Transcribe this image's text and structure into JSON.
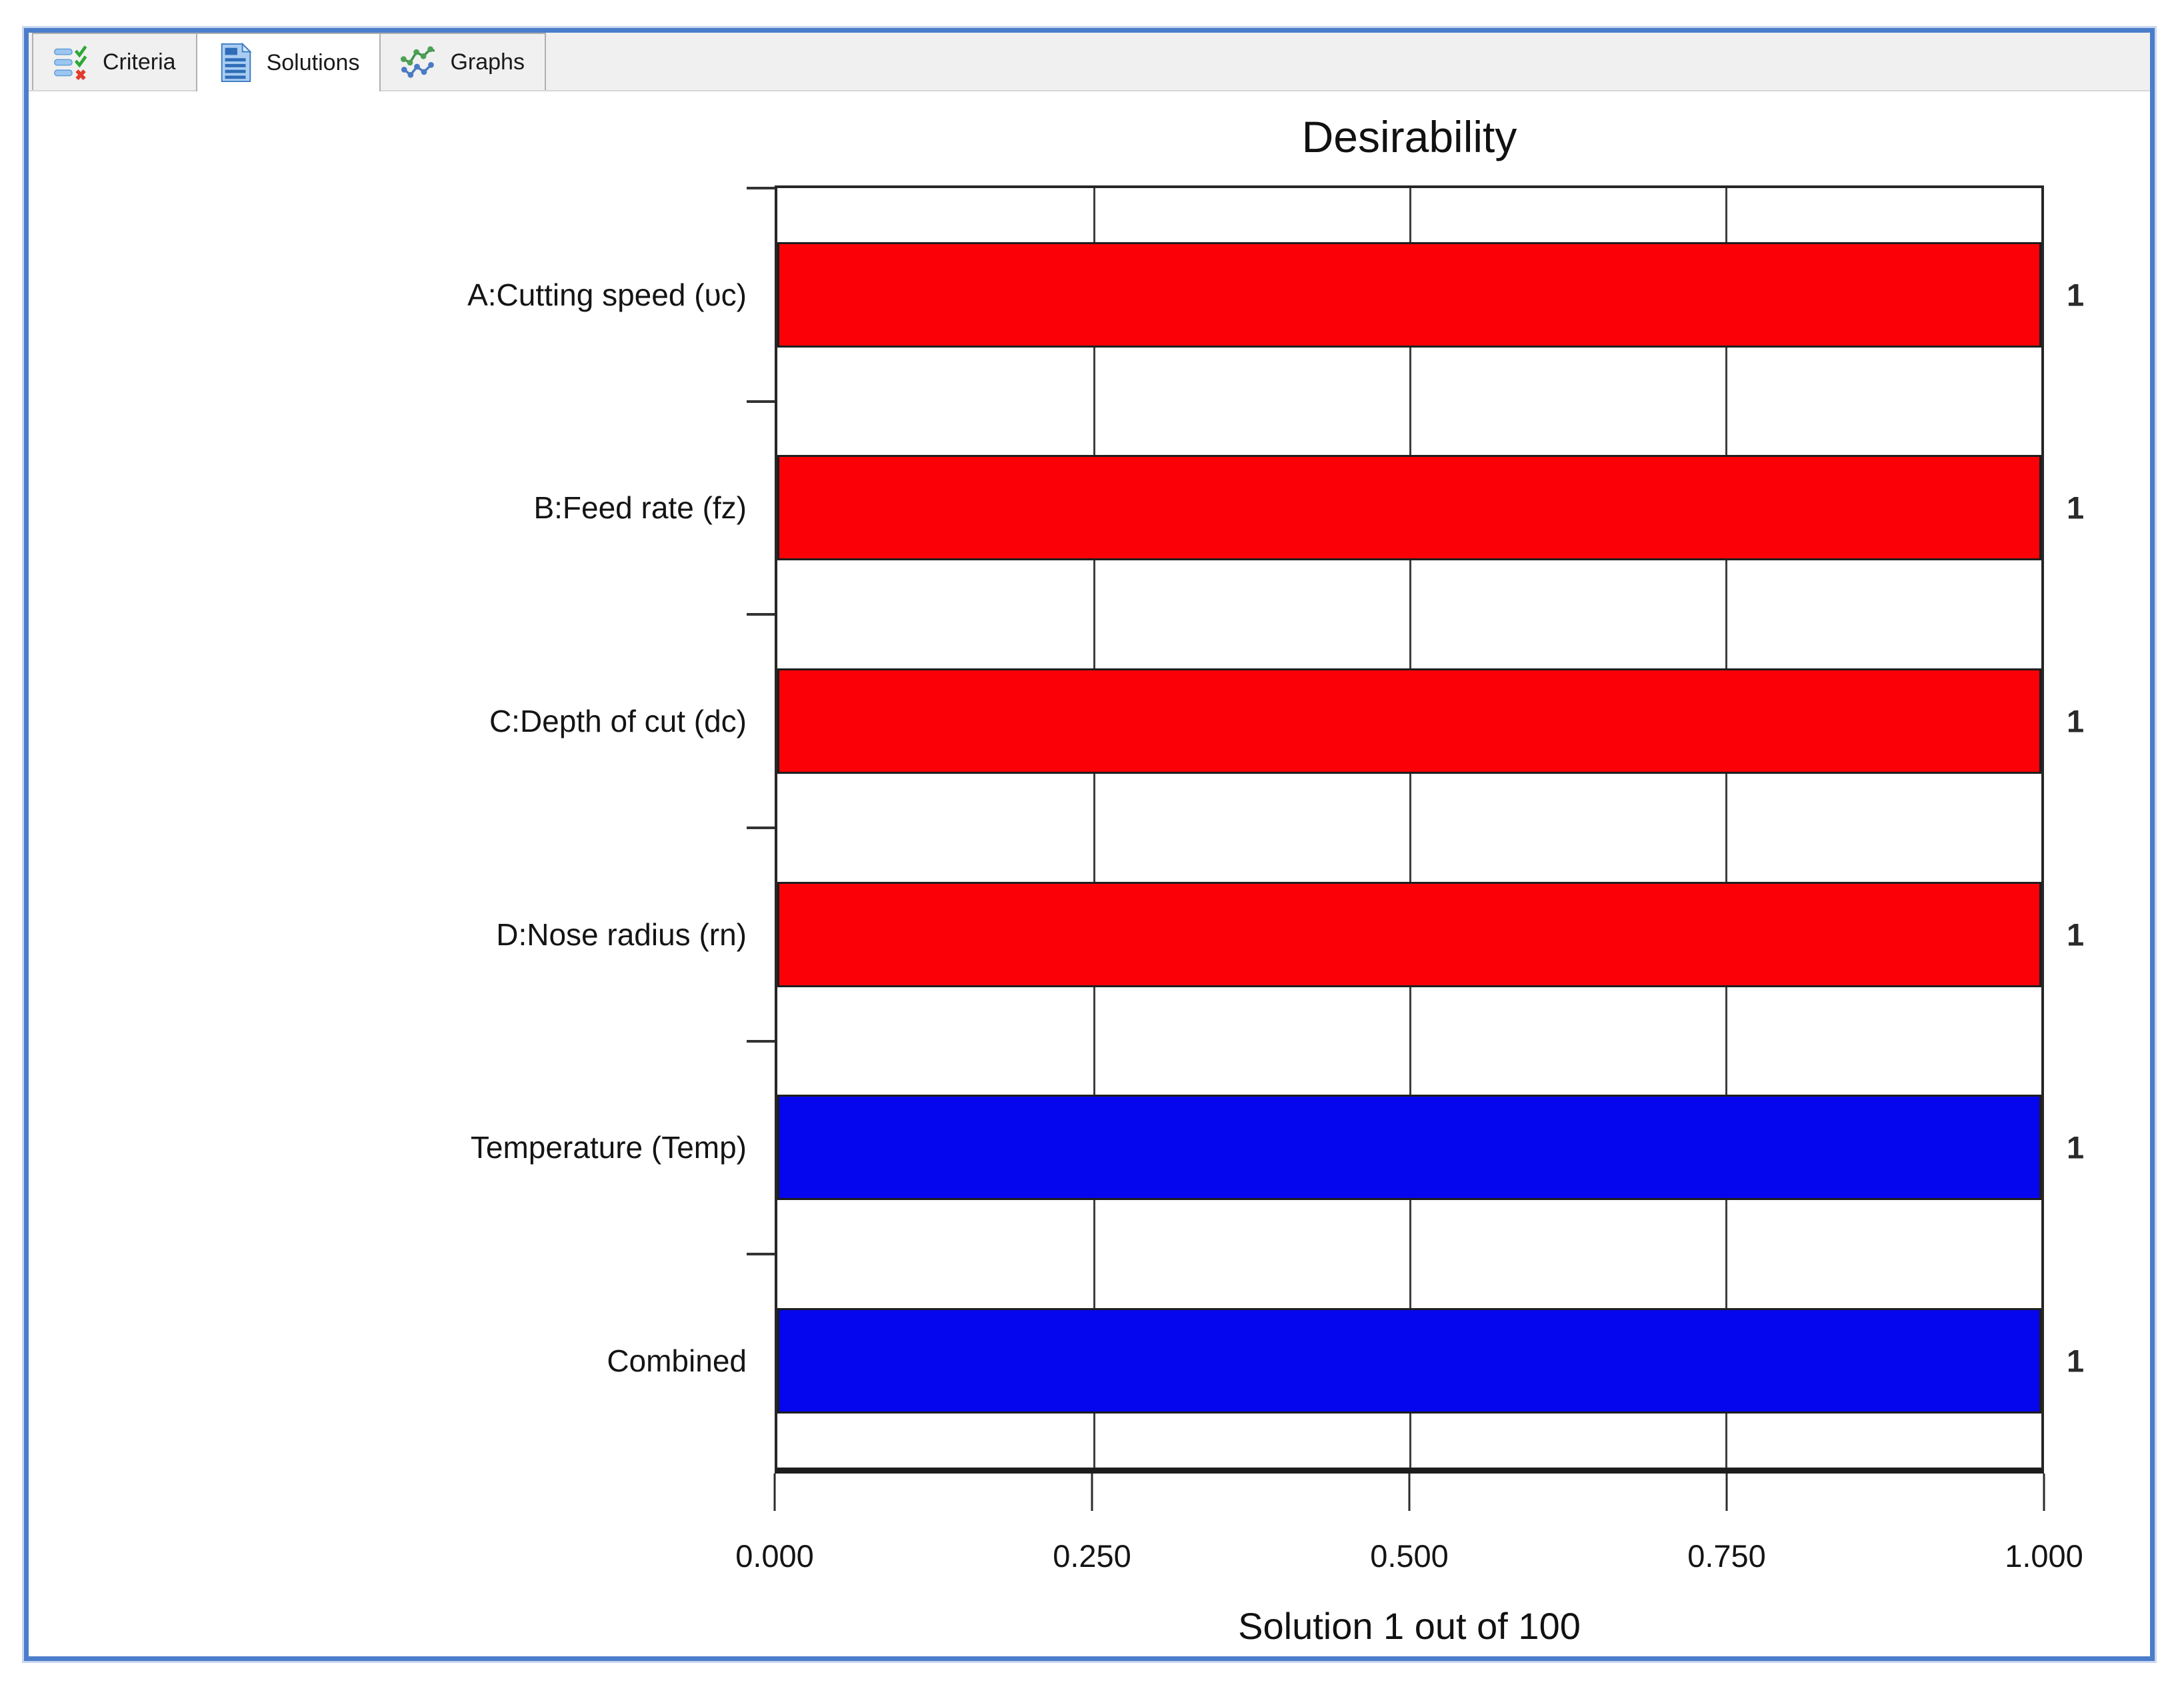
{
  "colors": {
    "window-border": "#4b7dca",
    "window-border-halo": "#c9d7ef",
    "tabstrip-bg": "#f0f0f0",
    "tab-active-bg": "#ffffff",
    "tab-border": "#b0b0b0",
    "axis-line": "#262626",
    "text": "#1a1a1a",
    "factor-bar": "#fb0006",
    "response-bar": "#0606ee"
  },
  "tabs": [
    {
      "label": "Criteria",
      "icon": "criteria-checklist-icon",
      "active": false
    },
    {
      "label": "Solutions",
      "icon": "solutions-report-icon",
      "active": true
    },
    {
      "label": "Graphs",
      "icon": "graphs-lines-icon",
      "active": false
    }
  ],
  "chart_data": {
    "type": "bar",
    "orientation": "horizontal",
    "title": "Desirability",
    "xlabel": "Solution 1 out of 100",
    "categories": [
      "A:Cutting speed (υc)",
      "B:Feed rate (fz)",
      "C:Depth of cut (dc)",
      "D:Nose radius (rn)",
      "Temperature (Temp)",
      "Combined"
    ],
    "values": [
      1,
      1,
      1,
      1,
      1,
      1
    ],
    "value_labels": [
      "1",
      "1",
      "1",
      "1",
      "1",
      "1"
    ],
    "bar_colors": [
      "#fb0006",
      "#fb0006",
      "#fb0006",
      "#fb0006",
      "#0606ee",
      "#0606ee"
    ],
    "bar_roles": [
      "factor",
      "factor",
      "factor",
      "factor",
      "response",
      "combined"
    ],
    "xlim": [
      0,
      1
    ],
    "x_ticks": [
      {
        "value": 0.0,
        "label": "0.000"
      },
      {
        "value": 0.25,
        "label": "0.250"
      },
      {
        "value": 0.5,
        "label": "0.500"
      },
      {
        "value": 0.75,
        "label": "0.750"
      },
      {
        "value": 1.0,
        "label": "1.000"
      }
    ],
    "grid": {
      "vertical_lines_at": [
        0.25,
        0.5,
        0.75
      ]
    },
    "legend": "none"
  }
}
